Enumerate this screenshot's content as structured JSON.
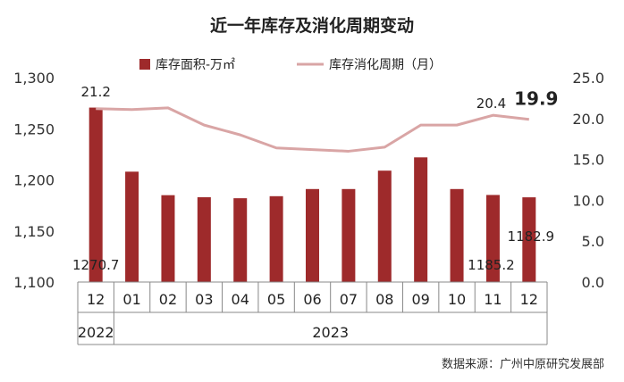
{
  "chart_data": {
    "type": "bar+line",
    "title": "近一年库存及消化周期变动",
    "categories": [
      "12",
      "01",
      "02",
      "03",
      "04",
      "05",
      "06",
      "07",
      "08",
      "09",
      "10",
      "11",
      "12"
    ],
    "year_labels": [
      "2022",
      "2023"
    ],
    "series": [
      {
        "name": "库存面积-万㎡",
        "type": "bar",
        "axis": "left",
        "color": "#9e2a2b",
        "values": [
          1270.7,
          1208,
          1185,
          1183,
          1182,
          1184,
          1191,
          1191,
          1209,
          1222,
          1191,
          1185.2,
          1182.9
        ]
      },
      {
        "name": "库存消化周期（月）",
        "type": "line",
        "axis": "right",
        "color": "#d9a5a5",
        "values": [
          21.2,
          21.1,
          21.3,
          19.2,
          18.0,
          16.4,
          16.2,
          16.0,
          16.5,
          19.2,
          19.2,
          20.4,
          19.9
        ]
      }
    ],
    "y_left": {
      "min": 1100,
      "max": 1300,
      "ticks": [
        "1,100",
        "1,150",
        "1,200",
        "1,250",
        "1,300"
      ]
    },
    "y_right": {
      "min": 0,
      "max": 25,
      "ticks": [
        "0.0",
        "5.0",
        "10.0",
        "15.0",
        "20.0",
        "25.0"
      ]
    },
    "labels": {
      "bar_first": "1270.7",
      "bar_11": "1185.2",
      "bar_last": "1182.9",
      "line_first": "21.2",
      "line_11": "20.4",
      "line_last": "19.9"
    },
    "source": "数据来源：广州中原研究发展部"
  }
}
